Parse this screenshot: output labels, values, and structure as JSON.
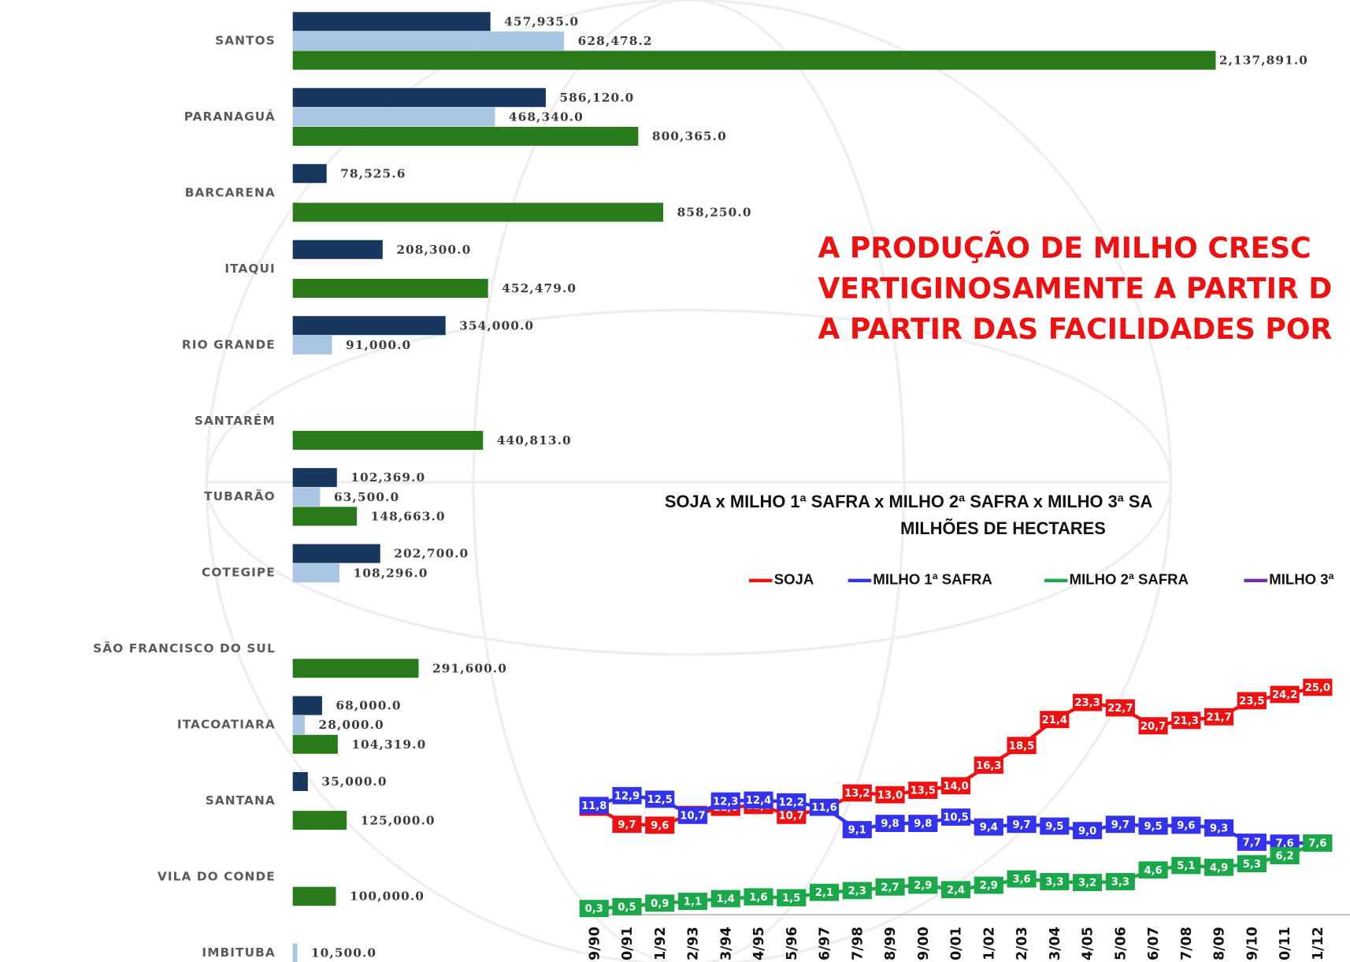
{
  "chart_data": [
    {
      "type": "hbar",
      "categories": [
        "SANTOS",
        "PARANAGUÁ",
        "BARCARENA",
        "ITAQUI",
        "RIO GRANDE",
        "SANTARÉM",
        "TUBARÃO",
        "COTEGIPE",
        "SÃO FRANCISCO DO SUL",
        "ITACOATIARA",
        "SANTANA",
        "VILA DO CONDE",
        "IMBITUBA"
      ],
      "series": [
        {
          "color": "#17375e",
          "values": [
            457935.0,
            586120.0,
            78525.6,
            208300.0,
            354000.0,
            null,
            102369.0,
            202700.0,
            null,
            68000.0,
            35000.0,
            null,
            null
          ],
          "value_labels": [
            "457,935.0",
            "586,120.0",
            "78,525.6",
            "208,300.0",
            "354,000.0",
            null,
            "102,369.0",
            "202,700.0",
            null,
            "68,000.0",
            "35,000.0",
            null,
            null
          ]
        },
        {
          "color": "#a9c5e4",
          "values": [
            628478.2,
            468340.0,
            null,
            null,
            91000.0,
            null,
            63500.0,
            108296.0,
            null,
            28000.0,
            null,
            null,
            10500.0
          ],
          "value_labels": [
            "628,478.2",
            "468,340.0",
            null,
            null,
            "91,000.0",
            null,
            "63,500.0",
            "108,296.0",
            null,
            "28,000.0",
            null,
            null,
            "10,500.0"
          ]
        },
        {
          "color": "#2a7a1c",
          "values": [
            2137891.0,
            800365.0,
            858250.0,
            452479.0,
            null,
            440813.0,
            148663.0,
            null,
            291600.0,
            104319.0,
            125000.0,
            100000.0,
            null
          ],
          "value_labels": [
            "2,137,891.0",
            "800,365.0",
            "858,250.0",
            "452,479.0",
            null,
            "440,813.0",
            "148,663.0",
            null,
            "291,600.0",
            "104,319.0",
            "125,000.0",
            "100,000.0",
            null
          ]
        }
      ]
    },
    {
      "type": "line",
      "title": "SOJA x MILHO 1ª SAFRA x MILHO 2ª SAFRA x MILHO 3ª SA",
      "subtitle": "MILHÕES DE HECTARES",
      "categories": [
        "9/90",
        "0/91",
        "1/92",
        "2/93",
        "3/94",
        "4/95",
        "5/96",
        "6/97",
        "7/98",
        "8/99",
        "9/00",
        "0/01",
        "1/02",
        "2/03",
        "3/04",
        "4/05",
        "5/06",
        "6/07",
        "7/08",
        "8/09",
        "9/10",
        "0/11",
        "1/12"
      ],
      "series": [
        {
          "name": "SOJA",
          "color": "#ee1111",
          "values": [
            11.6,
            9.7,
            9.6,
            10.8,
            11.6,
            11.8,
            10.7,
            11.4,
            13.2,
            13.0,
            13.5,
            14.0,
            16.3,
            18.5,
            21.4,
            23.3,
            22.7,
            20.7,
            21.3,
            21.7,
            23.5,
            24.2,
            25.0
          ],
          "value_labels": [
            "11,6",
            "9,7",
            "9,6",
            "10,8",
            "11,6",
            "11,8",
            "10,7",
            null,
            "13,2",
            "13,0",
            "13,5",
            "14,0",
            "16,3",
            "18,5",
            "21,4",
            "23,3",
            "22,7",
            "20,7",
            "21,3",
            "21,7",
            "23,5",
            "24,2",
            "25,0"
          ]
        },
        {
          "name": "MILHO 1ª SAFRA",
          "color": "#3333ee",
          "values": [
            11.8,
            12.9,
            12.5,
            10.7,
            12.3,
            12.4,
            12.2,
            11.6,
            9.1,
            9.8,
            9.8,
            10.5,
            9.4,
            9.7,
            9.5,
            9.0,
            9.7,
            9.5,
            9.6,
            9.3,
            7.7,
            7.6,
            7.6
          ],
          "value_labels": [
            "11,8",
            "12,9",
            "12,5",
            "10,7",
            "12,3",
            "12,4",
            "12,2",
            "11,6",
            "9,1",
            "9,8",
            "9,8",
            "10,5",
            "9,4",
            "9,7",
            "9,5",
            "9,0",
            "9,7",
            "9,5",
            "9,6",
            "9,3",
            "7,7",
            "7,6",
            "7,6"
          ]
        },
        {
          "name": "MILHO 2ª SAFRA",
          "color": "#1aa84a",
          "values": [
            0.3,
            0.5,
            0.9,
            1.1,
            1.4,
            1.6,
            1.5,
            2.1,
            2.3,
            2.7,
            2.9,
            2.4,
            2.9,
            3.6,
            3.3,
            3.2,
            3.3,
            4.6,
            5.1,
            4.9,
            5.3,
            6.2,
            7.6
          ],
          "value_labels": [
            "0,3",
            "0,5",
            "0,9",
            "1,1",
            "1,4",
            "1,6",
            "1,5",
            "2,1",
            "2,3",
            "2,7",
            "2,9",
            "2,4",
            "2,9",
            "3,6",
            "3,3",
            "3,2",
            "3,3",
            "4,6",
            "5,1",
            "4,9",
            "5,3",
            "6,2",
            "7,6"
          ]
        },
        {
          "name": "MILHO 3ª",
          "color": "#7030a0",
          "values": [
            null,
            null,
            null,
            null,
            null,
            null,
            null,
            null,
            null,
            null,
            null,
            null,
            null,
            null,
            null,
            null,
            null,
            null,
            null,
            null,
            null,
            null,
            null
          ]
        }
      ]
    }
  ],
  "headline": {
    "lines": [
      "A PRODUÇÃO DE MILHO CRESC",
      "VERTIGINOSAMENTE A PARTIR D",
      "A PARTIR DAS FACILIDADES POR"
    ]
  }
}
